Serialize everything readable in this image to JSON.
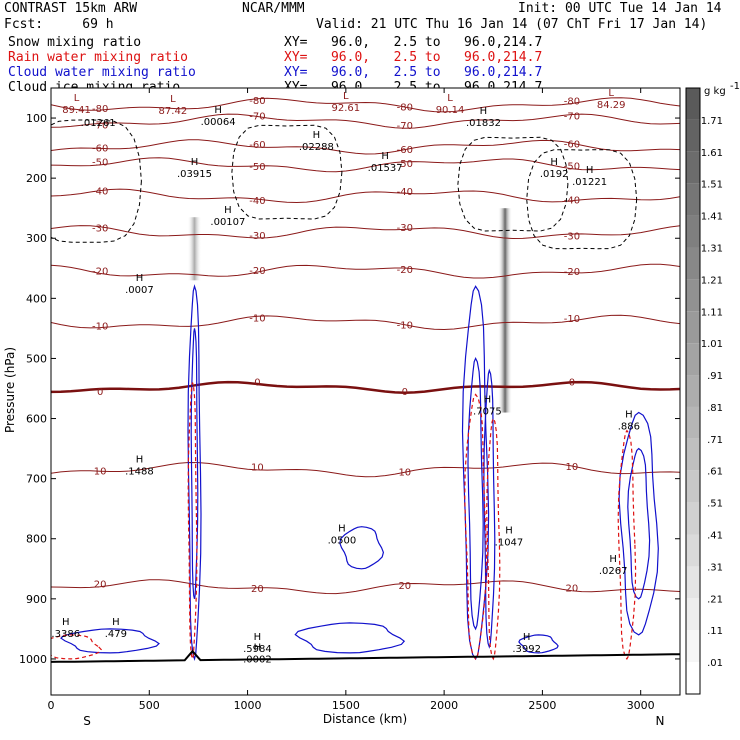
{
  "header": {
    "model": "CONTRAST 15km ARW",
    "forecast": "Fcst:     69 h",
    "center": "NCAR/MMM",
    "init": "Init: 00 UTC Tue 14 Jan 14",
    "valid": "Valid: 21 UTC Thu 16 Jan 14 (07 ChT Fri 17 Jan 14)"
  },
  "fields": [
    {
      "name": "Snow mixing ratio",
      "xy": "XY=   96.0,   2.5 to   96.0,214.7",
      "color": "#000000"
    },
    {
      "name": "Rain water mixing ratio",
      "xy": "XY=   96.0,   2.5 to   96.0,214.7",
      "color": "#dd1111"
    },
    {
      "name": "Cloud water mixing ratio",
      "xy": "XY=   96.0,   2.5 to   96.0,214.7",
      "color": "#1111cc"
    },
    {
      "name": "Cloud ice mixing ratio",
      "xy": "XY=   96.0,   2.5 to   96.0,214.7",
      "color": "#000000"
    }
  ],
  "chart_data": {
    "type": "contour",
    "xlabel": "Distance (km)",
    "ylabel": "Pressure (hPa)",
    "xlim": [
      0,
      3200
    ],
    "ylim": [
      1060,
      50
    ],
    "x_ticks": [
      0,
      500,
      1000,
      1500,
      2000,
      2500,
      3000
    ],
    "y_ticks": [
      100,
      200,
      300,
      400,
      500,
      600,
      700,
      800,
      900,
      1000
    ],
    "end_labels": {
      "left": "S",
      "right": "N"
    },
    "colorbar": {
      "unit": "g kg",
      "unit_exp": "-1",
      "levels": [
        "1.71",
        "1.61",
        "1.51",
        "1.41",
        "1.31",
        "1.21",
        "1.11",
        "1.01",
        ".91",
        ".81",
        ".71",
        ".61",
        ".51",
        ".41",
        ".31",
        ".21",
        ".11",
        ".01"
      ]
    },
    "temperature_levels": [
      {
        "value": -80,
        "p": 78
      },
      {
        "value": -70,
        "p": 105
      },
      {
        "value": -60,
        "p": 148
      },
      {
        "value": -50,
        "p": 178
      },
      {
        "value": -40,
        "p": 230
      },
      {
        "value": -30,
        "p": 290
      },
      {
        "value": -20,
        "p": 355
      },
      {
        "value": -10,
        "p": 440
      },
      {
        "value": 0,
        "p": 548
      },
      {
        "value": 10,
        "p": 685
      },
      {
        "value": 20,
        "p": 880
      }
    ],
    "extrema": [
      {
        "kind": "L",
        "value": "89.41",
        "x": 130,
        "p": 88
      },
      {
        "kind": "",
        "value": ".01261",
        "x": 240,
        "p": 110
      },
      {
        "kind": "L",
        "value": "87.42",
        "x": 620,
        "p": 90
      },
      {
        "kind": "H",
        "value": ".00064",
        "x": 850,
        "p": 108
      },
      {
        "kind": "L",
        "value": "92.61",
        "x": 1500,
        "p": 85
      },
      {
        "kind": "H",
        "value": ".02288",
        "x": 1350,
        "p": 150
      },
      {
        "kind": "L",
        "value": "90.14",
        "x": 2030,
        "p": 88
      },
      {
        "kind": "H",
        "value": ".01832",
        "x": 2200,
        "p": 110
      },
      {
        "kind": "H",
        "value": ".01537",
        "x": 1700,
        "p": 185
      },
      {
        "kind": "L",
        "value": "84.29",
        "x": 2850,
        "p": 80
      },
      {
        "kind": "H",
        "value": ".03915",
        "x": 730,
        "p": 195
      },
      {
        "kind": "H",
        "value": ".00107",
        "x": 900,
        "p": 275
      },
      {
        "kind": "H",
        "value": ".0192",
        "x": 2560,
        "p": 195
      },
      {
        "kind": "H",
        "value": ".01221",
        "x": 2740,
        "p": 208
      },
      {
        "kind": "H",
        "value": ".0007",
        "x": 450,
        "p": 388
      },
      {
        "kind": "H",
        "value": ".1488",
        "x": 450,
        "p": 690
      },
      {
        "kind": "H",
        "value": ".7075",
        "x": 2220,
        "p": 590
      },
      {
        "kind": "H",
        "value": ".3386",
        "x": 75,
        "p": 960
      },
      {
        "kind": "H",
        "value": ".479",
        "x": 330,
        "p": 960
      },
      {
        "kind": "H",
        "value": ".5984",
        "x": 1050,
        "p": 985
      },
      {
        "kind": "H",
        "value": ".0002",
        "x": 1050,
        "p": 1003
      },
      {
        "kind": "H",
        "value": ".0500",
        "x": 1480,
        "p": 805
      },
      {
        "kind": "H",
        "value": ".1047",
        "x": 2330,
        "p": 808
      },
      {
        "kind": "H",
        "value": ".3992",
        "x": 2420,
        "p": 985
      },
      {
        "kind": "H",
        "value": ".0267",
        "x": 2860,
        "p": 855
      },
      {
        "kind": "H",
        "value": ".886",
        "x": 2940,
        "p": 615
      }
    ]
  }
}
